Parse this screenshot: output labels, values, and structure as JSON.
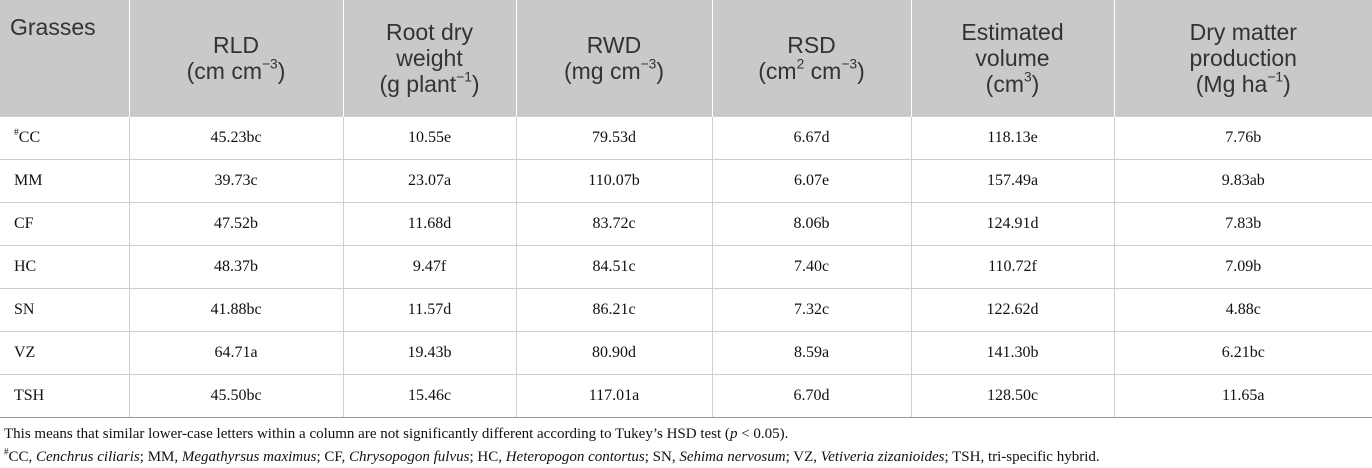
{
  "table": {
    "headers": [
      {
        "l1": "Grasses",
        "l2": "",
        "sup": "",
        "tail": ""
      },
      {
        "l1": "RLD",
        "l2": "(cm cm",
        "sup": "−3",
        "tail": ")"
      },
      {
        "l1": "Root dry",
        "l2": "weight",
        "l3": "(g plant",
        "sup": "−1",
        "tail": ")"
      },
      {
        "l1": "RWD",
        "l2": "(mg cm",
        "sup": "−3",
        "tail": ")"
      },
      {
        "l1": "RSD",
        "l2": "(cm",
        "sup_a": "2",
        "mid": " cm",
        "sup": "−3",
        "tail": ")"
      },
      {
        "l1": "Estimated",
        "l2": "volume",
        "l3": "(cm",
        "sup": "3",
        "tail": ")"
      },
      {
        "l1": "Dry matter",
        "l2": "production",
        "l3": "(Mg ha",
        "sup": "−1",
        "tail": ")"
      }
    ],
    "rows": [
      {
        "grass_mark": "#",
        "grass": "CC",
        "rld": "45.23bc",
        "root_dry_weight": "10.55e",
        "rwd": "79.53d",
        "rsd": "6.67d",
        "volume": "118.13e",
        "dry_matter": "7.76b"
      },
      {
        "grass_mark": "",
        "grass": "MM",
        "rld": "39.73c",
        "root_dry_weight": "23.07a",
        "rwd": "110.07b",
        "rsd": "6.07e",
        "volume": "157.49a",
        "dry_matter": "9.83ab"
      },
      {
        "grass_mark": "",
        "grass": "CF",
        "rld": "47.52b",
        "root_dry_weight": "11.68d",
        "rwd": "83.72c",
        "rsd": "8.06b",
        "volume": "124.91d",
        "dry_matter": "7.83b"
      },
      {
        "grass_mark": "",
        "grass": "HC",
        "rld": "48.37b",
        "root_dry_weight": "9.47f",
        "rwd": "84.51c",
        "rsd": "7.40c",
        "volume": "110.72f",
        "dry_matter": "7.09b"
      },
      {
        "grass_mark": "",
        "grass": "SN",
        "rld": "41.88bc",
        "root_dry_weight": "11.57d",
        "rwd": "86.21c",
        "rsd": "7.32c",
        "volume": "122.62d",
        "dry_matter": "4.88c"
      },
      {
        "grass_mark": "",
        "grass": "VZ",
        "rld": "64.71a",
        "root_dry_weight": "19.43b",
        "rwd": "80.90d",
        "rsd": "8.59a",
        "volume": "141.30b",
        "dry_matter": "6.21bc"
      },
      {
        "grass_mark": "",
        "grass": "TSH",
        "rld": "45.50bc",
        "root_dry_weight": "15.46c",
        "rwd": "117.01a",
        "rsd": "6.70d",
        "volume": "128.50c",
        "dry_matter": "11.65a"
      }
    ]
  },
  "notes": {
    "line1_a": "This means that similar lower-case letters within a column are not significantly different according to Tukey’s HSD test (",
    "line1_p": "p",
    "line1_b": " < 0.05).",
    "line2_mark": "#",
    "line2_parts": [
      {
        "abbr": "CC, ",
        "name": "Cenchrus ciliaris",
        "sep": "; "
      },
      {
        "abbr": "MM, ",
        "name": "Megathyrsus maximus",
        "sep": "; "
      },
      {
        "abbr": "CF, ",
        "name": "Chrysopogon fulvus",
        "sep": "; "
      },
      {
        "abbr": "HC, ",
        "name": "Heteropogon contortus",
        "sep": "; "
      },
      {
        "abbr": "SN, ",
        "name": "Sehima nervosum",
        "sep": "; "
      },
      {
        "abbr": "VZ, ",
        "name": "Vetiveria zizanioides",
        "sep": "; "
      },
      {
        "abbr": "TSH, tri-specific hybrid.",
        "name": "",
        "sep": ""
      }
    ]
  }
}
